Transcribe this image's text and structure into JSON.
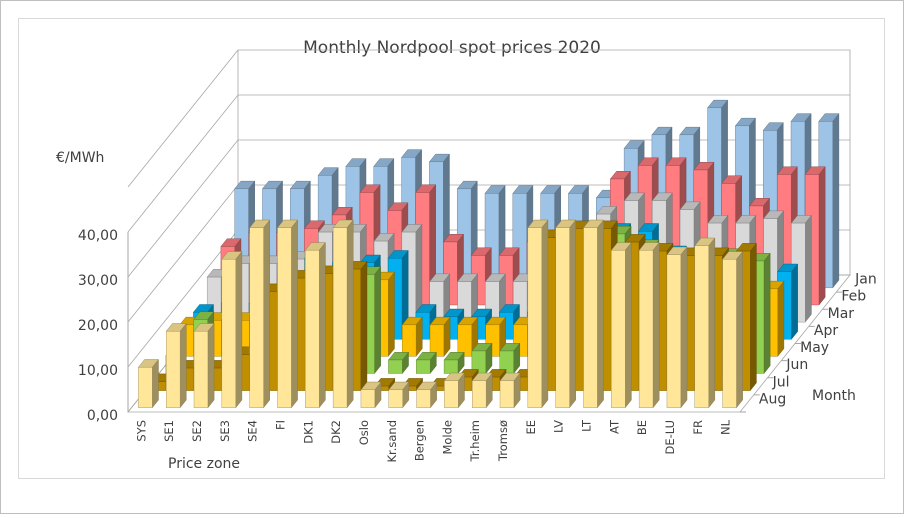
{
  "chart_data": {
    "type": "bar3d",
    "title": "Monthly Nordpool spot prices 2020",
    "y_label": "€/MWh",
    "x_label": "Price zone",
    "z_label": "Month",
    "categories": [
      "SYS",
      "SE1",
      "SE2",
      "SE3",
      "SE4",
      "FI",
      "DK1",
      "DK2",
      "Oslo",
      "Kr.sand",
      "Bergen",
      "Molde",
      "Tr.heim",
      "Tromsø",
      "EE",
      "LV",
      "LT",
      "AT",
      "BE",
      "DE-LU",
      "FR",
      "NL"
    ],
    "ylim": [
      0,
      50
    ],
    "yticks": [
      {
        "value": 0,
        "label": "0,00"
      },
      {
        "value": 10,
        "label": "10,00"
      },
      {
        "value": 20,
        "label": "20,00"
      },
      {
        "value": 30,
        "label": "30,00"
      },
      {
        "value": 40,
        "label": "40,00"
      }
    ],
    "series": [
      {
        "name": "Jan",
        "color": "#9dc3e6",
        "values": [
          22,
          22,
          22,
          25,
          27,
          27,
          29,
          28,
          22,
          21,
          21,
          21,
          21,
          20,
          31,
          34,
          34,
          40,
          36,
          35,
          37,
          37
        ]
      },
      {
        "name": "Feb",
        "color": "#ff7c80",
        "values": [
          13,
          16,
          16,
          17,
          20,
          25,
          21,
          25,
          14,
          11,
          11,
          14,
          14,
          14,
          28,
          31,
          31,
          30,
          27,
          22,
          29,
          29
        ]
      },
      {
        "name": "Mar",
        "color": "#d9d9d9",
        "values": [
          10,
          13,
          13,
          14,
          20,
          20,
          18,
          20,
          9,
          9,
          9,
          9,
          9,
          9,
          24,
          27,
          27,
          25,
          22,
          22,
          23,
          22
        ]
      },
      {
        "name": "Apr",
        "color": "#00b0f0",
        "values": [
          6,
          8,
          8,
          12,
          18,
          17,
          17,
          18,
          6,
          5,
          5,
          6,
          6,
          6,
          22,
          24,
          24,
          19,
          15,
          17,
          14,
          15
        ]
      },
      {
        "name": "May",
        "color": "#ffc000",
        "values": [
          7,
          8,
          8,
          12,
          16,
          17,
          16,
          17,
          7,
          7,
          7,
          7,
          7,
          7,
          21,
          24,
          24,
          19,
          15,
          17,
          14,
          15
        ]
      },
      {
        "name": "Jun",
        "color": "#92d050",
        "values": [
          4,
          12,
          12,
          13,
          22,
          27,
          24,
          22,
          3,
          3,
          3,
          5,
          5,
          5,
          29,
          31,
          31,
          28,
          24,
          26,
          26,
          25
        ]
      },
      {
        "name": "Jul",
        "color": "#bf8f00",
        "values": [
          2,
          5,
          5,
          8,
          22,
          25,
          26,
          27,
          1,
          1,
          1,
          3,
          3,
          3,
          34,
          36,
          36,
          33,
          31,
          30,
          30,
          31
        ]
      },
      {
        "name": "Aug",
        "color": "#ffe699",
        "values": [
          9,
          17,
          17,
          33,
          40,
          40,
          35,
          40,
          4,
          4,
          4,
          6,
          6,
          6,
          40,
          40,
          40,
          35,
          35,
          34,
          36,
          33
        ]
      }
    ]
  }
}
